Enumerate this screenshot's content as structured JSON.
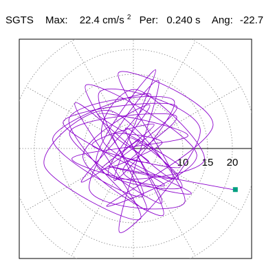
{
  "header": {
    "station": "SGTS",
    "max_label": "Max:",
    "max_value": "22.4 cm/s",
    "max_exp": "2",
    "per_label": "Per:",
    "per_value": "0.240 s",
    "ang_label": "Ang:",
    "ang_value": "-22.7"
  },
  "chart_data": {
    "type": "line",
    "title": "SGTS   Max:  22.4 cm/s2  Per:  0.240 s   Ang: -22.7",
    "xlabel": "",
    "ylabel": "",
    "projection": "polar-hodogram",
    "radial_ticks": [
      "10",
      "15",
      "20"
    ],
    "radial_tick_values": [
      10,
      15,
      20
    ],
    "rings": [
      5,
      10,
      15,
      20,
      25
    ],
    "spokes_deg": [
      0,
      30,
      60,
      90,
      120,
      150,
      180,
      210,
      240,
      270,
      300,
      330
    ],
    "grid": true,
    "xlim": [
      -23.5,
      24.5
    ],
    "ylim": [
      -22.5,
      22.5
    ],
    "trace_color": "#8b00cc",
    "marker_color": "#009f7f",
    "series": [
      {
        "x": [
          0.0,
          1.2,
          -2.3,
          3.1,
          -4.0,
          5.8,
          -6.5,
          4.2,
          -8.3,
          9.5,
          -7.1,
          11.0,
          -12.4,
          6.3,
          -14.2,
          8.8,
          -10.5,
          3.5,
          -16.3,
          2.0,
          -9.6,
          12.8,
          -5.4,
          16.1,
          -3.0,
          7.9,
          -11.8,
          1.5,
          -18.0,
          -4.6,
          10.4,
          -8.9,
          5.1,
          -2.8,
          13.5,
          -6.9,
          2.7,
          -13.0,
          8.2,
          -3.9,
          4.5,
          -7.5,
          9.8,
          -1.6,
          6.0,
          -10.2,
          3.3,
          -4.9,
          14.3,
          0.6,
          -6.1,
          11.7,
          -2.1,
          8.6,
          -12.9,
          5.5,
          -0.8,
          9.1,
          -5.0,
          17.4,
          20.6
        ],
        "y": [
          0.0,
          1.8,
          -1.4,
          -2.6,
          2.9,
          1.1,
          -4.2,
          4.8,
          0.6,
          -3.7,
          6.9,
          2.5,
          -2.0,
          -7.4,
          5.3,
          8.4,
          -6.8,
          10.9,
          1.9,
          -9.5,
          12.8,
          -1.2,
          -11.6,
          4.7,
          15.3,
          -5.9,
          9.2,
          -14.1,
          -3.4,
          7.6,
          -10.8,
          -8.2,
          13.7,
          -16.9,
          3.9,
          11.3,
          -12.4,
          6.0,
          9.7,
          -6.4,
          15.9,
          -3.1,
          -7.8,
          4.1,
          -13.5,
          -1.8,
          8.8,
          -5.5,
          -2.4,
          11.9,
          1.4,
          -9.0,
          -4.7,
          6.6,
          3.2,
          -11.1,
          2.1,
          -6.0,
          -3.6,
          -7.8,
          -8.3
        ]
      }
    ],
    "end_point": {
      "x": 20.6,
      "y": -8.3
    }
  }
}
